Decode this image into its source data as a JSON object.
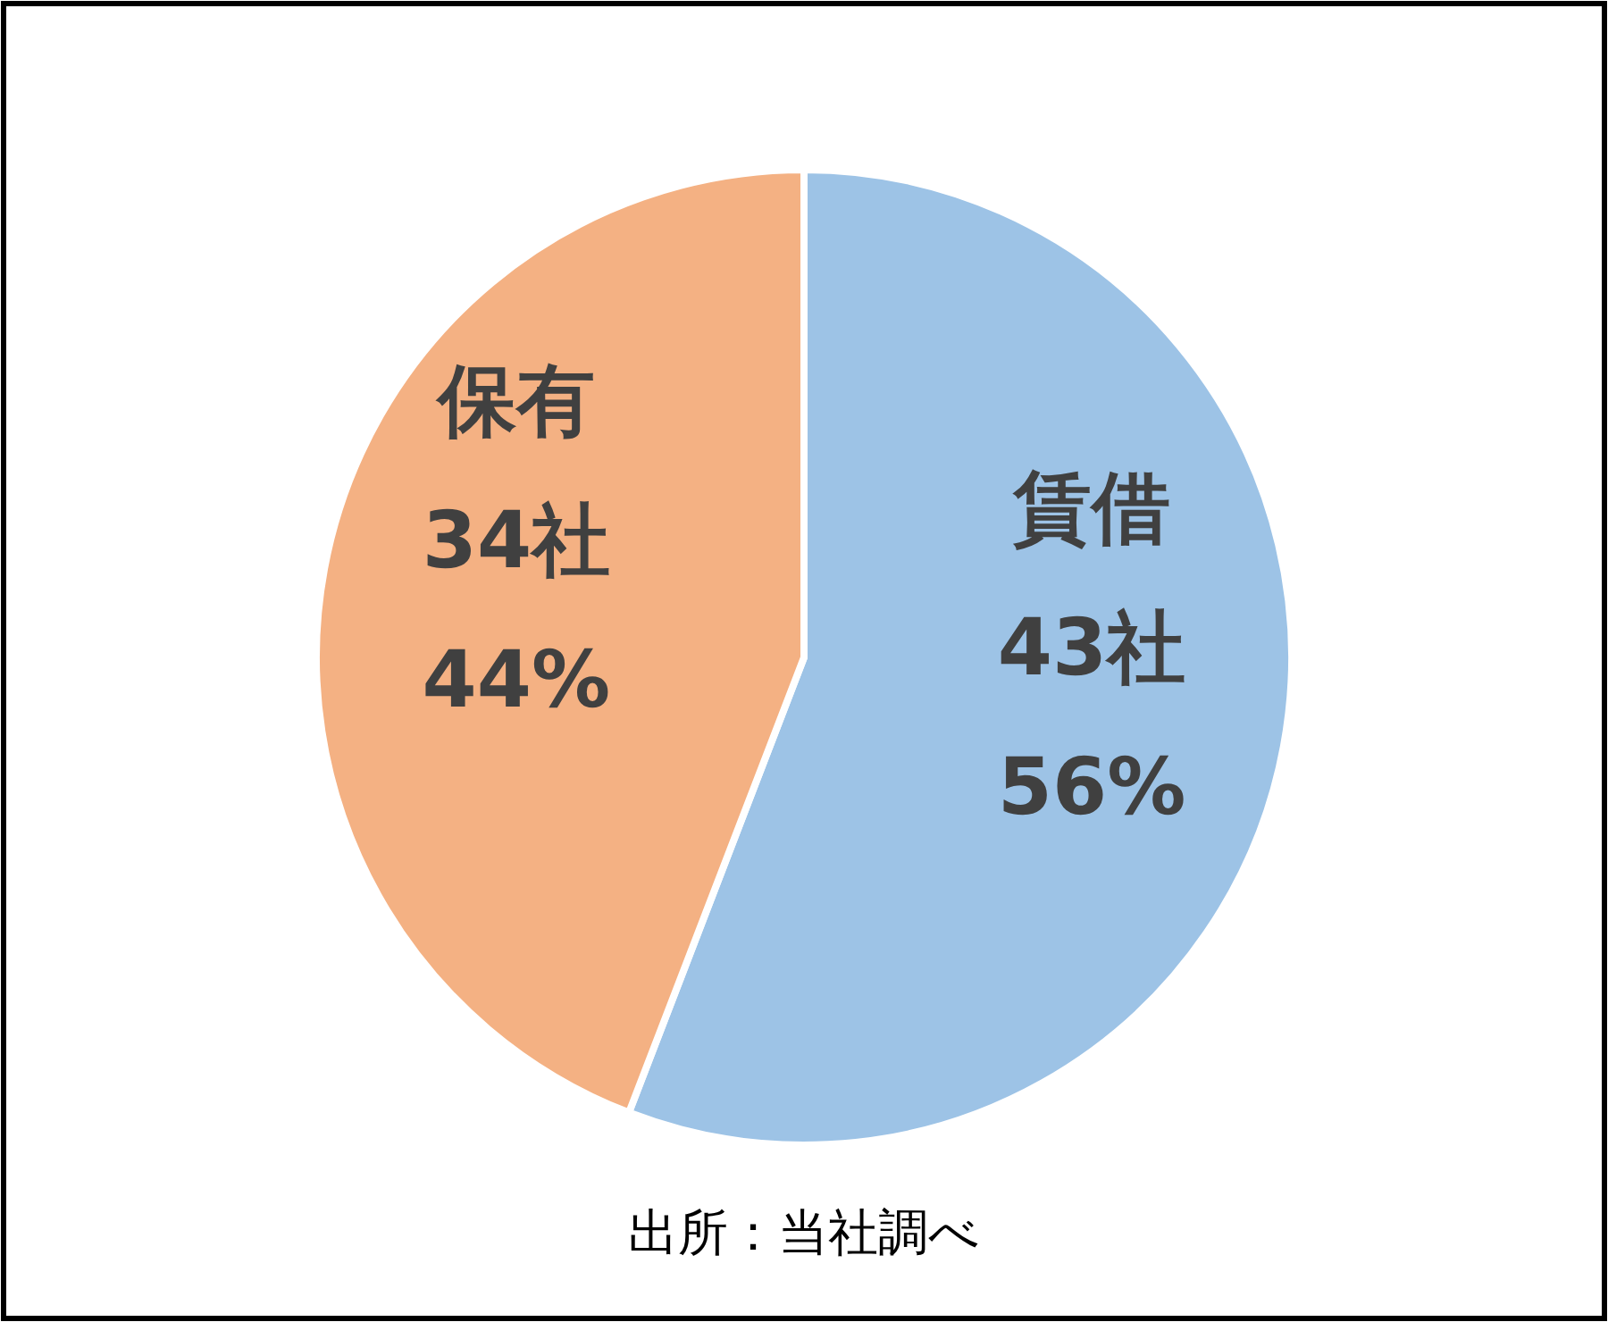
{
  "chart_data": {
    "type": "pie",
    "categories": [
      "賃借",
      "保有"
    ],
    "values": [
      43,
      34
    ],
    "value_labels": [
      "43社\n56%",
      "34社\n44%"
    ],
    "colors": [
      "#9dc3e6",
      "#f4b183"
    ],
    "annotations": [
      "出所：当社調べ"
    ]
  }
}
